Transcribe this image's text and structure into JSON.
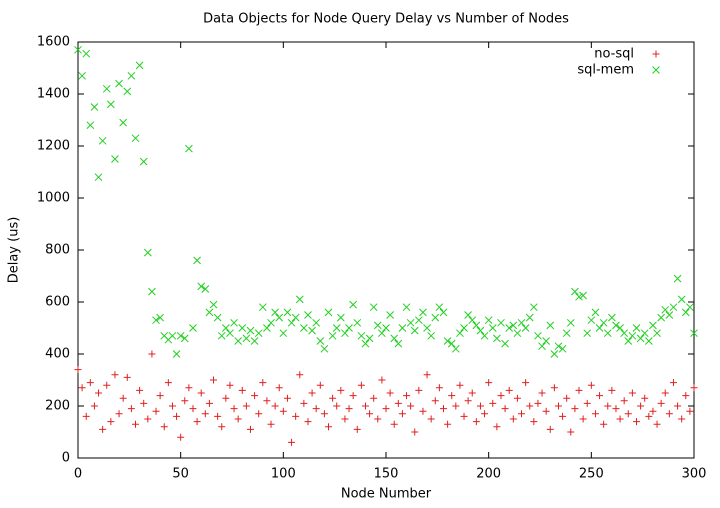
{
  "chart_data": {
    "type": "scatter",
    "title": "Data Objects for Node Query Delay vs Number of Nodes",
    "x_label": "Node Number",
    "y_label": "Delay (us)",
    "xlim": [
      0,
      300
    ],
    "ylim": [
      0,
      1600
    ],
    "xticks": [
      0,
      50,
      100,
      150,
      200,
      250,
      300
    ],
    "yticks": [
      0,
      200,
      400,
      600,
      800,
      1000,
      1200,
      1400,
      1600
    ],
    "legend": "top-right",
    "x": [
      0,
      2,
      4,
      6,
      8,
      10,
      12,
      14,
      16,
      18,
      20,
      22,
      24,
      26,
      28,
      30,
      32,
      34,
      36,
      38,
      40,
      42,
      44,
      46,
      48,
      50,
      52,
      54,
      56,
      58,
      60,
      62,
      64,
      66,
      68,
      70,
      72,
      74,
      76,
      78,
      80,
      82,
      84,
      86,
      88,
      90,
      92,
      94,
      96,
      98,
      100,
      102,
      104,
      106,
      108,
      110,
      112,
      114,
      116,
      118,
      120,
      122,
      124,
      126,
      128,
      130,
      132,
      134,
      136,
      138,
      140,
      142,
      144,
      146,
      148,
      150,
      152,
      154,
      156,
      158,
      160,
      162,
      164,
      166,
      168,
      170,
      172,
      174,
      176,
      178,
      180,
      182,
      184,
      186,
      188,
      190,
      192,
      194,
      196,
      198,
      200,
      202,
      204,
      206,
      208,
      210,
      212,
      214,
      216,
      218,
      220,
      222,
      224,
      226,
      228,
      230,
      232,
      234,
      236,
      238,
      240,
      242,
      244,
      246,
      248,
      250,
      252,
      254,
      256,
      258,
      260,
      262,
      264,
      266,
      268,
      270,
      272,
      274,
      276,
      278,
      280,
      282,
      284,
      286,
      288,
      290,
      292,
      294,
      296,
      298,
      300
    ],
    "series": [
      {
        "name": "no-sql",
        "color": "#e02020",
        "marker": "+",
        "values": [
          340,
          270,
          160,
          290,
          200,
          250,
          110,
          280,
          140,
          320,
          170,
          230,
          310,
          190,
          130,
          260,
          210,
          150,
          400,
          180,
          240,
          120,
          290,
          200,
          160,
          80,
          220,
          270,
          190,
          140,
          250,
          170,
          210,
          300,
          160,
          120,
          230,
          280,
          190,
          150,
          260,
          200,
          110,
          240,
          170,
          290,
          220,
          130,
          200,
          270,
          180,
          230,
          60,
          160,
          320,
          210,
          140,
          250,
          190,
          280,
          170,
          120,
          230,
          200,
          260,
          150,
          190,
          240,
          110,
          280,
          200,
          170,
          230,
          150,
          300,
          190,
          250,
          130,
          210,
          170,
          240,
          200,
          100,
          260,
          180,
          320,
          150,
          220,
          270,
          190,
          130,
          240,
          200,
          280,
          160,
          220,
          250,
          140,
          200,
          170,
          290,
          210,
          120,
          240,
          190,
          260,
          150,
          230,
          170,
          290,
          200,
          140,
          210,
          250,
          180,
          110,
          270,
          200,
          160,
          230,
          100,
          190,
          260,
          150,
          210,
          280,
          170,
          240,
          130,
          200,
          260,
          190,
          150,
          220,
          170,
          250,
          140,
          200,
          230,
          160,
          180,
          130,
          210,
          250,
          170,
          290,
          200,
          150,
          240,
          180,
          270
        ]
      },
      {
        "name": "sql-mem",
        "color": "#20d020",
        "marker": "x",
        "values": [
          1570,
          1470,
          1555,
          1280,
          1350,
          1080,
          1220,
          1420,
          1360,
          1150,
          1440,
          1290,
          1410,
          1470,
          1230,
          1510,
          1140,
          790,
          640,
          530,
          540,
          470,
          455,
          470,
          400,
          470,
          460,
          1190,
          500,
          760,
          660,
          650,
          560,
          590,
          540,
          470,
          500,
          480,
          520,
          450,
          500,
          460,
          490,
          450,
          480,
          580,
          500,
          520,
          560,
          540,
          480,
          560,
          520,
          540,
          610,
          500,
          550,
          490,
          520,
          450,
          420,
          560,
          470,
          500,
          540,
          480,
          500,
          590,
          520,
          470,
          440,
          460,
          580,
          510,
          480,
          500,
          550,
          460,
          440,
          500,
          580,
          520,
          490,
          530,
          560,
          500,
          470,
          540,
          580,
          560,
          450,
          440,
          420,
          480,
          500,
          550,
          530,
          510,
          490,
          470,
          530,
          500,
          460,
          520,
          440,
          500,
          510,
          480,
          520,
          500,
          540,
          580,
          470,
          430,
          450,
          510,
          400,
          430,
          420,
          480,
          520,
          640,
          620,
          625,
          480,
          530,
          560,
          500,
          520,
          480,
          540,
          510,
          500,
          480,
          450,
          470,
          500,
          460,
          480,
          450,
          510,
          480,
          540,
          570,
          550,
          580,
          690,
          610,
          560,
          580,
          480
        ]
      }
    ]
  }
}
